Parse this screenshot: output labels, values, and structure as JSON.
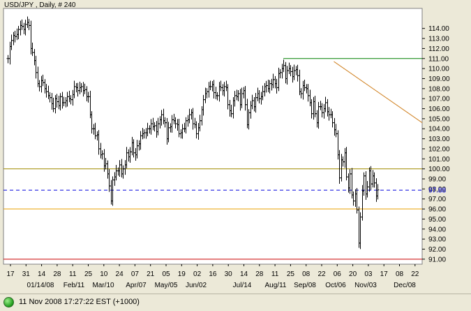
{
  "chart_data": {
    "type": "bar",
    "title": "USD/JPY , Daily, # 240",
    "ylim": [
      90.5,
      116.0
    ],
    "y_ticks": [
      "91.00",
      "92.00",
      "93.00",
      "94.00",
      "95.00",
      "96.00",
      "97.00",
      "98.00",
      "99.00",
      "100.00",
      "101.00",
      "102.00",
      "103.00",
      "104.00",
      "105.00",
      "106.00",
      "107.00",
      "108.00",
      "109.00",
      "110.00",
      "111.00",
      "112.00",
      "113.00",
      "114.00"
    ],
    "x_ticks_top": [
      "17",
      "31",
      "14",
      "28",
      "11",
      "25",
      "10",
      "24",
      "07",
      "21",
      "05",
      "19",
      "02",
      "16",
      "30",
      "14",
      "28",
      "11",
      "25",
      "08",
      "22",
      "06",
      "20",
      "03",
      "17",
      "08",
      "22"
    ],
    "x_ticks_bottom": [
      "01/14/08",
      "Feb/11",
      "Mar/10",
      "Apr/07",
      "May/05",
      "Jun/02",
      "Jul/14",
      "Aug/11",
      "Sep/08",
      "Oct/06",
      "Nov/03",
      "Dec/08"
    ],
    "last_price_label": "97.88",
    "levels": [
      {
        "value": 111.0,
        "color": "#008000",
        "style": "solid",
        "from_bar": 158
      },
      {
        "value": 100.0,
        "color": "#a08c00",
        "style": "solid",
        "from_bar": 0
      },
      {
        "value": 97.88,
        "color": "#0000dd",
        "style": "dashed",
        "from_bar": 0
      },
      {
        "value": 96.0,
        "color": "#e8a000",
        "style": "solid",
        "from_bar": 0
      },
      {
        "value": 91.0,
        "color": "#cc0000",
        "style": "solid",
        "from_bar": 0
      }
    ],
    "trendline": {
      "color": "#d08020",
      "from": {
        "bar": 187,
        "value": 110.7
      },
      "to": {
        "bar": 275,
        "value": 100.1
      }
    },
    "close_series": [
      111.0,
      112.2,
      112.8,
      113.3,
      113.2,
      113.4,
      113.9,
      114.3,
      114.2,
      113.9,
      114.4,
      114.6,
      114.3,
      112.0,
      111.6,
      110.8,
      109.6,
      108.5,
      108.2,
      108.8,
      108.6,
      108.0,
      107.7,
      107.3,
      107.1,
      106.5,
      106.0,
      107.0,
      106.7,
      106.3,
      107.2,
      106.6,
      106.6,
      106.8,
      107.2,
      107.0,
      106.9,
      107.4,
      108.2,
      108.1,
      107.8,
      108.1,
      108.2,
      107.8,
      107.9,
      107.2,
      107.2,
      105.4,
      104.0,
      104.0,
      103.3,
      103.4,
      102.0,
      101.4,
      101.5,
      100.3,
      100.5,
      99.5,
      98.3,
      96.8,
      98.9,
      99.2,
      99.8,
      99.8,
      100.4,
      99.5,
      100.0,
      100.4,
      101.6,
      101.2,
      101.7,
      102.6,
      101.6,
      101.4,
      102.3,
      102.5,
      103.3,
      103.5,
      103.6,
      103.6,
      104.0,
      104.0,
      104.5,
      104.2,
      104.3,
      103.7,
      104.5,
      104.9,
      105.4,
      104.8,
      104.6,
      103.0,
      104.1,
      104.2,
      104.9,
      104.8,
      104.5,
      104.4,
      103.5,
      103.6,
      104.0,
      104.0,
      104.8,
      104.9,
      105.4,
      105.6,
      104.5,
      104.4,
      103.5,
      104.1,
      104.8,
      105.9,
      106.9,
      107.5,
      107.7,
      108.2,
      108.2,
      108.4,
      107.6,
      107.3,
      107.3,
      108.2,
      108.1,
      107.8,
      108.2,
      108.1,
      106.4,
      105.8,
      105.5,
      106.8,
      107.3,
      107.2,
      107.5,
      106.4,
      107.5,
      107.8,
      106.4,
      104.4,
      105.6,
      106.3,
      106.8,
      106.2,
      107.1,
      107.5,
      107.0,
      107.2,
      107.7,
      108.2,
      108.3,
      108.0,
      108.5,
      108.4,
      108.9,
      108.5,
      108.1,
      109.5,
      109.6,
      110.0,
      110.3,
      109.0,
      109.8,
      110.0,
      109.7,
      109.2,
      109.8,
      109.9,
      109.3,
      107.7,
      107.5,
      108.3,
      108.1,
      108.0,
      107.3,
      106.6,
      105.5,
      106.7,
      105.5,
      104.6,
      106.2,
      106.2,
      105.6,
      106.0,
      106.6,
      105.7,
      105.4,
      105.4,
      104.6,
      103.9,
      103.5,
      101.4,
      99.1,
      100.9,
      100.7,
      101.6,
      99.2,
      98.1,
      99.5,
      97.4,
      96.8,
      97.5,
      95.9,
      92.6,
      95.2,
      97.8,
      99.3,
      97.5,
      98.2,
      99.8,
      98.5,
      99.3,
      98.6,
      97.3,
      97.9
    ],
    "bar_count": 240
  },
  "status": {
    "text": "11 Nov 2008 17:27:22  EST (+1000)"
  }
}
